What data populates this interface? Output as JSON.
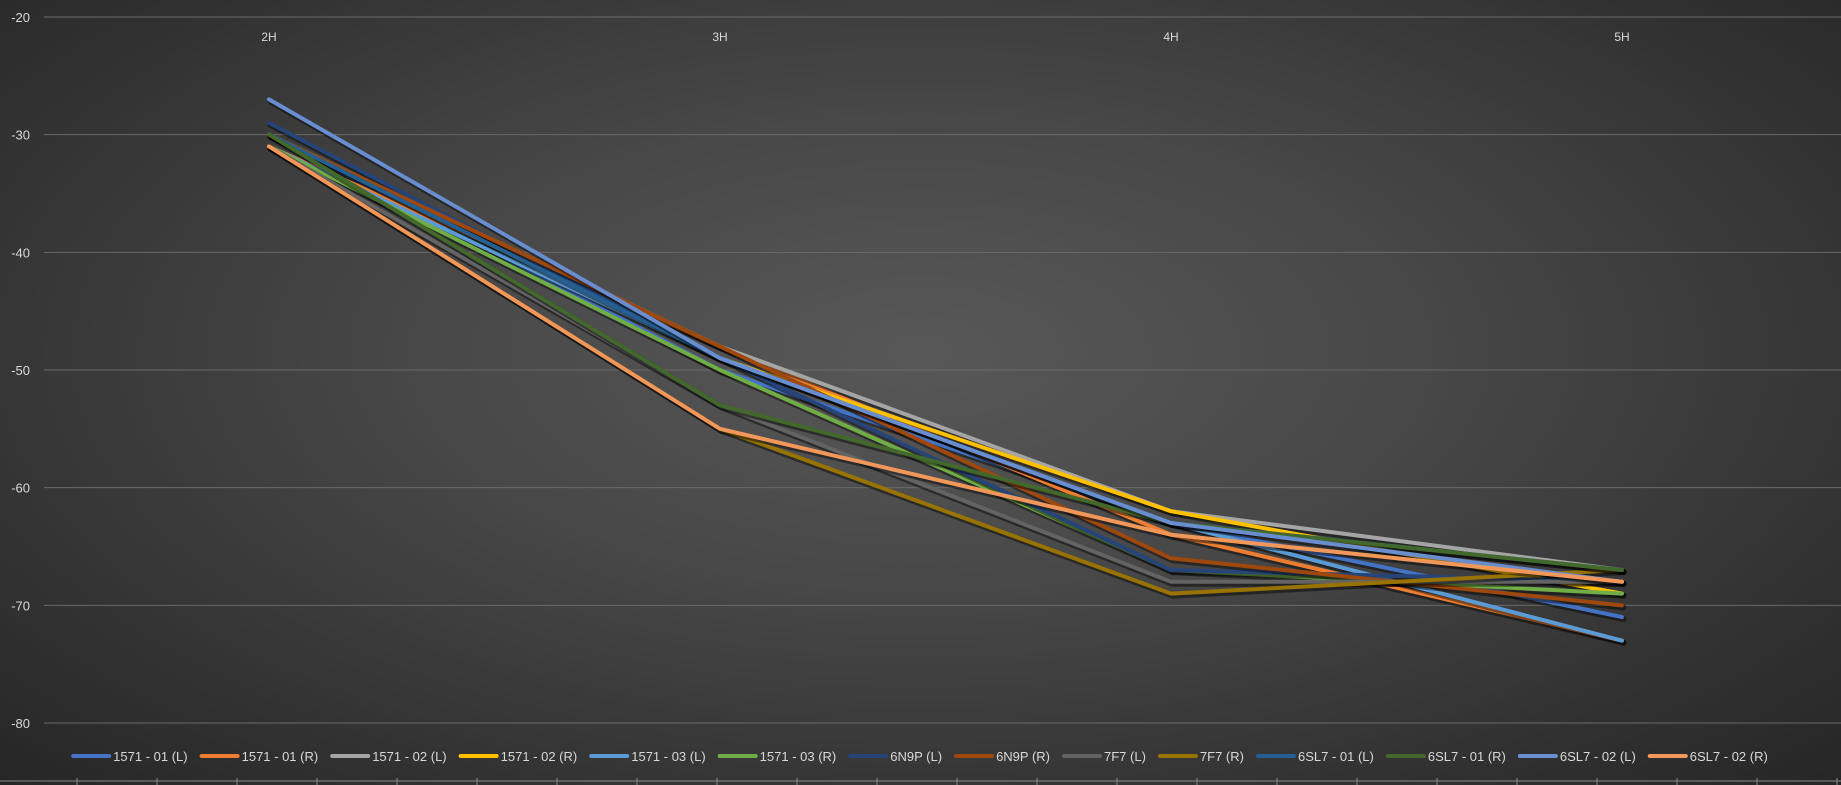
{
  "chart_data": {
    "type": "line",
    "title": "",
    "xlabel": "",
    "ylabel": "",
    "categories": [
      "2H",
      "3H",
      "4H",
      "5H"
    ],
    "x_axis_position": "top",
    "y_ticks": [
      -20,
      -30,
      -40,
      -50,
      -60,
      -70,
      -80
    ],
    "ylim": [
      -80,
      -20
    ],
    "grid": true,
    "legend_position": "bottom",
    "series": [
      {
        "name": "1571 - 01 (L)",
        "color": "#4472c4",
        "values": [
          -30,
          -50,
          -63,
          -71
        ]
      },
      {
        "name": "1571 - 01 (R)",
        "color": "#ed7d31",
        "values": [
          -31,
          -48,
          -64,
          -73
        ]
      },
      {
        "name": "1571 - 02 (L)",
        "color": "#a5a5a5",
        "values": [
          -30,
          -48,
          -62,
          -67
        ]
      },
      {
        "name": "1571 - 02 (R)",
        "color": "#ffc000",
        "values": [
          -30,
          -49,
          -62,
          -69
        ]
      },
      {
        "name": "1571 - 03 (L)",
        "color": "#5b9bd5",
        "values": [
          -31,
          -49,
          -63,
          -73
        ]
      },
      {
        "name": "1571 - 03 (R)",
        "color": "#70ad47",
        "values": [
          -31,
          -50,
          -67,
          -69
        ]
      },
      {
        "name": "6N9P (L)",
        "color": "#264478",
        "values": [
          -29,
          -49,
          -67,
          -68
        ]
      },
      {
        "name": "6N9P (R)",
        "color": "#9e480e",
        "values": [
          -30,
          -48,
          -66,
          -70
        ]
      },
      {
        "name": "7F7 (L)",
        "color": "#636363",
        "values": [
          -31,
          -53,
          -68,
          -68
        ]
      },
      {
        "name": "7F7 (R)",
        "color": "#997300",
        "values": [
          -31,
          -55,
          -69,
          -67
        ]
      },
      {
        "name": "6SL7 - 01 (L)",
        "color": "#255e91",
        "values": [
          -30,
          -49,
          -63,
          -67
        ]
      },
      {
        "name": "6SL7 - 01 (R)",
        "color": "#43682b",
        "values": [
          -30,
          -53,
          -63,
          -67
        ]
      },
      {
        "name": "6SL7 - 02 (L)",
        "color": "#698ed0",
        "values": [
          -27,
          -49,
          -63,
          -68
        ]
      },
      {
        "name": "6SL7 - 02 (R)",
        "color": "#f1975a",
        "values": [
          -31,
          -55,
          -64,
          -68
        ]
      }
    ]
  }
}
